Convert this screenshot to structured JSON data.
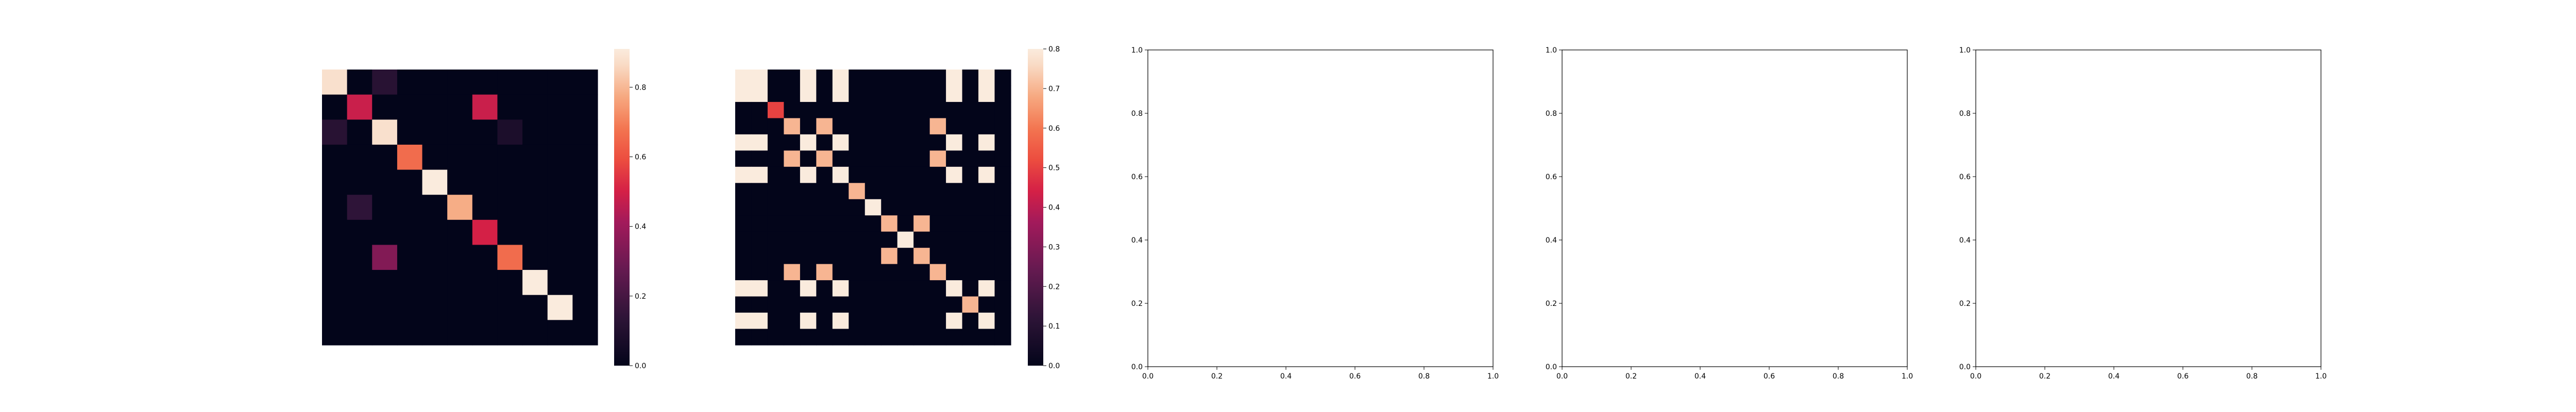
{
  "chart_data": [
    {
      "type": "heatmap",
      "title": "",
      "xlabel": "",
      "ylabel": "",
      "colormap": "rocket",
      "colorbar": {
        "vmin": 0,
        "vmax": 0.91,
        "ticks": [
          0.0,
          0.2,
          0.4,
          0.6,
          0.8
        ],
        "tick_labels": [
          "0.0",
          "0.2",
          "0.4",
          "0.6",
          "0.8"
        ]
      },
      "rows": 11,
      "cols": 11,
      "values": [
        [
          0.88,
          0,
          0.12,
          0,
          0,
          0,
          0,
          0,
          0,
          0,
          0
        ],
        [
          0,
          0.48,
          0,
          0,
          0,
          0,
          0.48,
          0,
          0,
          0,
          0
        ],
        [
          0.12,
          0,
          0.88,
          0,
          0,
          0,
          0,
          0.08,
          0,
          0,
          0
        ],
        [
          0,
          0,
          0,
          0.66,
          0,
          0,
          0,
          0,
          0,
          0,
          0
        ],
        [
          0,
          0,
          0,
          0,
          0.91,
          0,
          0,
          0,
          0,
          0,
          0
        ],
        [
          0,
          0.14,
          0,
          0,
          0,
          0.78,
          0,
          0,
          0,
          0,
          0
        ],
        [
          0,
          0,
          0,
          0,
          0,
          0,
          0.5,
          0,
          0,
          0,
          0
        ],
        [
          0,
          0,
          0.34,
          0,
          0,
          0,
          0,
          0.66,
          0,
          0,
          0
        ],
        [
          0,
          0,
          0,
          0,
          0,
          0,
          0,
          0,
          0.91,
          0,
          0
        ],
        [
          0,
          0,
          0,
          0,
          0,
          0,
          0,
          0,
          0,
          0.91,
          0
        ],
        [
          0,
          0,
          0,
          0,
          0,
          0,
          0,
          0,
          0,
          0,
          0
        ]
      ]
    },
    {
      "type": "heatmap",
      "title": "",
      "xlabel": "",
      "ylabel": "",
      "colormap": "rocket",
      "colorbar": {
        "vmin": 0,
        "vmax": 0.8,
        "ticks": [
          0.0,
          0.1,
          0.2,
          0.3,
          0.4,
          0.5,
          0.6,
          0.7,
          0.8
        ],
        "tick_labels": [
          "0.0",
          "0.1",
          "0.2",
          "0.3",
          "0.4",
          "0.5",
          "0.6",
          "0.7",
          "0.8"
        ]
      },
      "rows": 17,
      "cols": 17,
      "values": [
        [
          0.8,
          0.8,
          0,
          0,
          0.8,
          0,
          0.8,
          0,
          0,
          0,
          0,
          0,
          0,
          0.8,
          0,
          0.8,
          0
        ],
        [
          0.8,
          0.8,
          0,
          0,
          0.8,
          0,
          0.8,
          0,
          0,
          0,
          0,
          0,
          0,
          0.8,
          0,
          0.8,
          0
        ],
        [
          0,
          0,
          0.5,
          0,
          0,
          0,
          0,
          0,
          0,
          0,
          0,
          0,
          0,
          0,
          0,
          0,
          0
        ],
        [
          0,
          0,
          0,
          0.7,
          0,
          0.7,
          0,
          0,
          0,
          0,
          0,
          0,
          0.7,
          0,
          0,
          0,
          0
        ],
        [
          0.8,
          0.8,
          0,
          0,
          0.8,
          0,
          0.8,
          0,
          0,
          0,
          0,
          0,
          0,
          0.8,
          0,
          0.8,
          0
        ],
        [
          0,
          0,
          0,
          0.7,
          0,
          0.7,
          0,
          0,
          0,
          0,
          0,
          0,
          0.7,
          0,
          0,
          0,
          0
        ],
        [
          0.8,
          0.8,
          0,
          0,
          0.8,
          0,
          0.8,
          0,
          0,
          0,
          0,
          0,
          0,
          0.8,
          0,
          0.8,
          0
        ],
        [
          0,
          0,
          0,
          0,
          0,
          0,
          0,
          0.7,
          0,
          0,
          0,
          0,
          0,
          0,
          0,
          0,
          0
        ],
        [
          0,
          0,
          0,
          0,
          0,
          0,
          0,
          0,
          0.8,
          0,
          0,
          0,
          0,
          0,
          0,
          0,
          0
        ],
        [
          0,
          0,
          0,
          0,
          0,
          0,
          0,
          0,
          0,
          0.7,
          0,
          0.7,
          0,
          0,
          0,
          0,
          0
        ],
        [
          0,
          0,
          0,
          0,
          0,
          0,
          0,
          0,
          0,
          0,
          0.8,
          0,
          0,
          0,
          0,
          0,
          0
        ],
        [
          0,
          0,
          0,
          0,
          0,
          0,
          0,
          0,
          0,
          0.7,
          0,
          0.7,
          0,
          0,
          0,
          0,
          0
        ],
        [
          0,
          0,
          0,
          0.7,
          0,
          0.7,
          0,
          0,
          0,
          0,
          0,
          0,
          0.7,
          0,
          0,
          0,
          0
        ],
        [
          0.8,
          0.8,
          0,
          0,
          0.8,
          0,
          0.8,
          0,
          0,
          0,
          0,
          0,
          0,
          0.8,
          0,
          0.8,
          0
        ],
        [
          0,
          0,
          0,
          0,
          0,
          0,
          0,
          0,
          0,
          0,
          0,
          0,
          0,
          0,
          0.7,
          0,
          0
        ],
        [
          0.8,
          0.8,
          0,
          0,
          0.8,
          0,
          0.8,
          0,
          0,
          0,
          0,
          0,
          0,
          0.8,
          0,
          0.8,
          0
        ],
        [
          0,
          0,
          0,
          0,
          0,
          0,
          0,
          0,
          0,
          0,
          0,
          0,
          0,
          0,
          0,
          0,
          0
        ]
      ]
    },
    {
      "type": "line",
      "series": [],
      "xlim": [
        0.0,
        1.0
      ],
      "ylim": [
        0.0,
        1.0
      ],
      "xticks": [
        "0.0",
        "0.2",
        "0.4",
        "0.6",
        "0.8",
        "1.0"
      ],
      "yticks": [
        "0.0",
        "0.2",
        "0.4",
        "0.6",
        "0.8",
        "1.0"
      ],
      "title": "",
      "xlabel": "",
      "ylabel": ""
    },
    {
      "type": "line",
      "series": [],
      "xlim": [
        0.0,
        1.0
      ],
      "ylim": [
        0.0,
        1.0
      ],
      "xticks": [
        "0.0",
        "0.2",
        "0.4",
        "0.6",
        "0.8",
        "1.0"
      ],
      "yticks": [
        "0.0",
        "0.2",
        "0.4",
        "0.6",
        "0.8",
        "1.0"
      ],
      "title": "",
      "xlabel": "",
      "ylabel": ""
    },
    {
      "type": "line",
      "series": [],
      "xlim": [
        0.0,
        1.0
      ],
      "ylim": [
        0.0,
        1.0
      ],
      "xticks": [
        "0.0",
        "0.2",
        "0.4",
        "0.6",
        "0.8",
        "1.0"
      ],
      "yticks": [
        "0.0",
        "0.2",
        "0.4",
        "0.6",
        "0.8",
        "1.0"
      ],
      "title": "",
      "xlabel": "",
      "ylabel": ""
    }
  ]
}
